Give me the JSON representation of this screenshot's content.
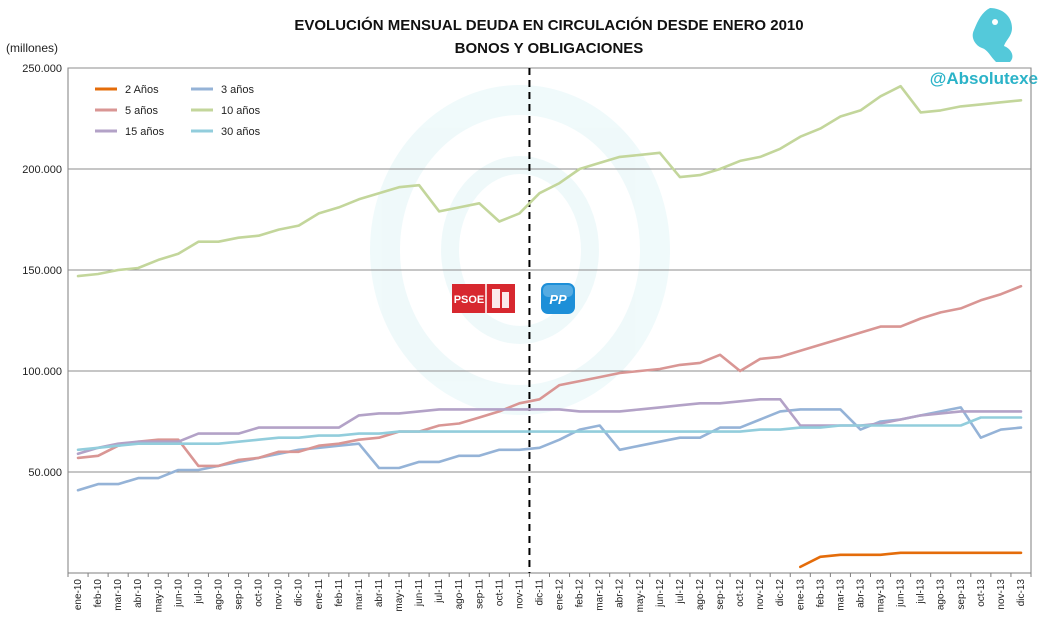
{
  "chart_data": {
    "type": "line",
    "title": "EVOLUCIÓN MENSUAL DEUDA EN CIRCULACIÓN DESDE ENERO 2010",
    "subtitle": "BONOS Y OBLIGACIONES",
    "ylabel": "(millones)",
    "xlabel": "",
    "ylim": [
      0,
      250000
    ],
    "yticks": [
      "50.000",
      "100.000",
      "150.000",
      "200.000",
      "250.000"
    ],
    "ytick_values": [
      50000,
      100000,
      150000,
      200000,
      250000
    ],
    "grid": "horizontal",
    "legend_position": "top-left",
    "divider_after_category": "nov-11",
    "brand": "@Absolutexe",
    "party_logos": [
      {
        "name": "psoe",
        "text": "PSOE"
      },
      {
        "name": "pp",
        "text": "PP"
      }
    ],
    "categories": [
      "ene-10",
      "feb-10",
      "mar-10",
      "abr-10",
      "may-10",
      "jun-10",
      "jul-10",
      "ago-10",
      "sep-10",
      "oct-10",
      "nov-10",
      "dic-10",
      "ene-11",
      "feb-11",
      "mar-11",
      "abr-11",
      "may-11",
      "jun-11",
      "jul-11",
      "ago-11",
      "sep-11",
      "oct-11",
      "nov-11",
      "dic-11",
      "ene-12",
      "feb-12",
      "mar-12",
      "abr-12",
      "may-12",
      "jun-12",
      "jul-12",
      "ago-12",
      "sep-12",
      "oct-12",
      "nov-12",
      "dic-12",
      "ene-13",
      "feb-13",
      "mar-13",
      "abr-13",
      "may-13",
      "jun-13",
      "jul-13",
      "ago-13",
      "sep-13",
      "oct-13",
      "nov-13",
      "dic-13"
    ],
    "series": [
      {
        "name": "2 Años",
        "color": "#e46c0a",
        "values": [
          null,
          null,
          null,
          null,
          null,
          null,
          null,
          null,
          null,
          null,
          null,
          null,
          null,
          null,
          null,
          null,
          null,
          null,
          null,
          null,
          null,
          null,
          null,
          null,
          null,
          null,
          null,
          null,
          null,
          null,
          null,
          null,
          null,
          null,
          null,
          null,
          3000,
          8000,
          9000,
          9000,
          9000,
          10000,
          10000,
          10000,
          10000,
          10000,
          10000,
          10000
        ]
      },
      {
        "name": "3 años",
        "color": "#95b3d7",
        "values": [
          41000,
          44000,
          44000,
          47000,
          47000,
          51000,
          51000,
          53000,
          55000,
          57000,
          59000,
          61000,
          62000,
          63000,
          64000,
          52000,
          52000,
          55000,
          55000,
          58000,
          58000,
          61000,
          61000,
          62000,
          66000,
          71000,
          73000,
          61000,
          63000,
          65000,
          67000,
          67000,
          72000,
          72000,
          76000,
          80000,
          81000,
          81000,
          81000,
          71000,
          75000,
          76000,
          78000,
          80000,
          82000,
          67000,
          71000,
          72000
        ]
      },
      {
        "name": "5 años",
        "color": "#d99694",
        "values": [
          57000,
          58000,
          63000,
          65000,
          66000,
          66000,
          53000,
          53000,
          56000,
          57000,
          60000,
          60000,
          63000,
          64000,
          66000,
          67000,
          70000,
          70000,
          73000,
          74000,
          77000,
          80000,
          84000,
          86000,
          93000,
          95000,
          97000,
          99000,
          100000,
          101000,
          103000,
          104000,
          108000,
          100000,
          106000,
          107000,
          110000,
          113000,
          116000,
          119000,
          122000,
          122000,
          126000,
          129000,
          131000,
          135000,
          138000,
          142000
        ]
      },
      {
        "name": "10 años",
        "color": "#c3d69b",
        "values": [
          147000,
          148000,
          150000,
          151000,
          155000,
          158000,
          164000,
          164000,
          166000,
          167000,
          170000,
          172000,
          178000,
          181000,
          185000,
          188000,
          191000,
          192000,
          179000,
          181000,
          183000,
          174000,
          178000,
          188000,
          193000,
          200000,
          203000,
          206000,
          207000,
          208000,
          196000,
          197000,
          200000,
          204000,
          206000,
          210000,
          216000,
          220000,
          226000,
          229000,
          236000,
          241000,
          228000,
          229000,
          231000,
          232000,
          233000,
          234000
        ]
      },
      {
        "name": "15 años",
        "color": "#b3a2c7",
        "values": [
          59000,
          62000,
          64000,
          65000,
          65000,
          65000,
          69000,
          69000,
          69000,
          72000,
          72000,
          72000,
          72000,
          72000,
          78000,
          79000,
          79000,
          80000,
          81000,
          81000,
          81000,
          81000,
          81000,
          81000,
          81000,
          80000,
          80000,
          80000,
          81000,
          82000,
          83000,
          84000,
          84000,
          85000,
          86000,
          86000,
          73000,
          73000,
          73000,
          73000,
          74000,
          76000,
          78000,
          79000,
          80000,
          80000,
          80000,
          80000
        ]
      },
      {
        "name": "30 años",
        "color": "#92cddc",
        "values": [
          61000,
          62000,
          63000,
          64000,
          64000,
          64000,
          64000,
          64000,
          65000,
          66000,
          67000,
          67000,
          68000,
          68000,
          69000,
          69000,
          70000,
          70000,
          70000,
          70000,
          70000,
          70000,
          70000,
          70000,
          70000,
          70000,
          70000,
          70000,
          70000,
          70000,
          70000,
          70000,
          70000,
          70000,
          71000,
          71000,
          72000,
          72000,
          73000,
          73000,
          73000,
          73000,
          73000,
          73000,
          73000,
          77000,
          77000,
          77000
        ]
      }
    ]
  }
}
